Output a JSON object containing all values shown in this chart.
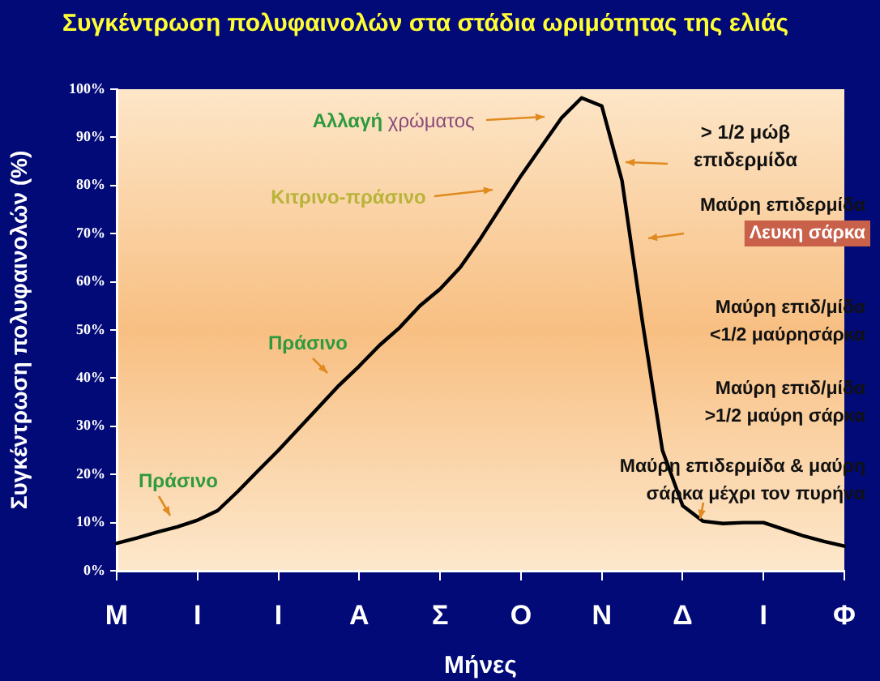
{
  "chart_data": {
    "type": "line",
    "title": "Συγκέντρωση πολυφαινολών στα στάδια ωριμότητας της ελιάς",
    "xlabel": "Μήνες",
    "ylabel": "Συγκέντρωση πολυφαινολών (%)",
    "categories": [
      "Μ",
      null,
      null,
      null,
      "Ι",
      null,
      null,
      null,
      "Ι",
      null,
      null,
      null,
      "Α",
      null,
      null,
      null,
      "Σ",
      null,
      null,
      null,
      "Ο",
      null,
      null,
      null,
      "Ν",
      null,
      null,
      null,
      "Δ",
      null,
      null,
      null,
      "Ι",
      null,
      null,
      null,
      "Φ"
    ],
    "ylim": [
      0,
      100
    ],
    "yticks": [
      {
        "value": 0,
        "label": "0%"
      },
      {
        "value": 10,
        "label": "10%"
      },
      {
        "value": 20,
        "label": "20%"
      },
      {
        "value": 30,
        "label": "30%"
      },
      {
        "value": 40,
        "label": "40%"
      },
      {
        "value": 50,
        "label": "50%"
      },
      {
        "value": 60,
        "label": "60%"
      },
      {
        "value": 70,
        "label": "70%"
      },
      {
        "value": 80,
        "label": "80%"
      },
      {
        "value": 90,
        "label": "90%"
      },
      {
        "value": 100,
        "label": "100%"
      }
    ],
    "series": [
      {
        "color": "#000000",
        "values": [
          5.7,
          6.8,
          8.0,
          9.1,
          10.5,
          12.5,
          16.5,
          20.8,
          25,
          29.5,
          34,
          38.5,
          42.5,
          46.8,
          50.5,
          55,
          58.5,
          63,
          69,
          75.5,
          82,
          88,
          94,
          98.2,
          96.5,
          81,
          52,
          25,
          13.5,
          10.3,
          9.8,
          10,
          10,
          8.6,
          7.2,
          6.1,
          5.1
        ]
      }
    ],
    "annotations": [
      "Αλλαγή χρώματος",
      "> 1/2 μώβ\nεπιδερμίδα",
      "Μαύρη επιδερμίδα\nΛευκη σάρκα",
      "Κιτρινο-πράσινο",
      "Πράσινο",
      "Μαύρη επιδ/μίδα\n<1/2 μαύρησάρκα",
      "Μαύρη επιδ/μίδα\n>1/2 μαύρη σάρκα",
      "Πράσινο",
      "Μαύρη επιδερμίδα & μαύρη\nσάρκα μέχρι τον πυρήνα"
    ],
    "grid": false,
    "legend": false,
    "marker": "none",
    "line_style": "solid"
  }
}
